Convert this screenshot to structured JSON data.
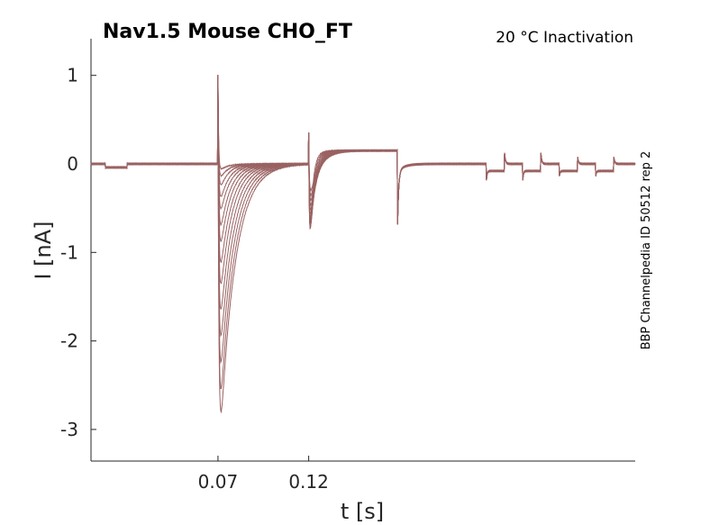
{
  "chart_data": {
    "type": "line",
    "title": "Nav1.5  Mouse  CHO_FT",
    "subtitle": "20 °C  Inactivation",
    "side_label": "BBP Channelpedia ID 50512 rep 2",
    "xlabel": "t [s]",
    "ylabel": "I [nA]",
    "xlim": [
      0,
      0.3
    ],
    "ylim": [
      -3.35,
      1.4
    ],
    "xticks": [
      0.07,
      0.12
    ],
    "xtick_labels": [
      "0.07",
      "0.12"
    ],
    "yticks": [
      1,
      0,
      -1,
      -2,
      -3
    ],
    "ytick_labels": [
      "1",
      "0",
      "-1",
      "-2",
      "-3"
    ],
    "grid": false,
    "line_color": "#9a6262",
    "sweep_count": 14,
    "sweep_peak_currents_nA": [
      -2.95,
      -2.7,
      -2.4,
      -2.1,
      -1.8,
      -1.5,
      -1.25,
      -1.0,
      -0.8,
      -0.6,
      -0.45,
      -0.3,
      -0.18,
      -0.08
    ],
    "features": {
      "prepulse_step": {
        "t_on": 0.008,
        "t_off": 0.02,
        "level": -0.04
      },
      "test_pulse": {
        "t_on": 0.07,
        "capacitive_peak": 1.0,
        "min_peak": -2.95
      },
      "second_pulse": {
        "t_on": 0.12,
        "capacitive_peak": 0.35,
        "min_peak": -1.15,
        "plateau": 0.15,
        "t_off": 0.169,
        "off_peak": -0.6
      },
      "train_steps": {
        "t_start": 0.218,
        "period": 0.02,
        "level": -0.1,
        "count": 4
      }
    }
  }
}
